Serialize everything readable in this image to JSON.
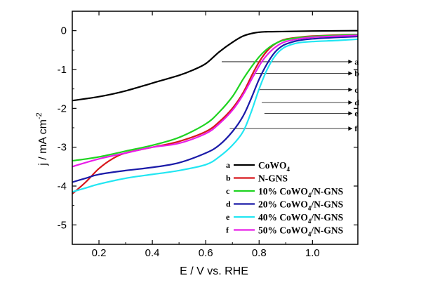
{
  "chart_data": {
    "type": "line",
    "title": "",
    "xlabel": "E / V vs. RHE",
    "ylabel": "j / mA cm",
    "ylabel_sup": "-2",
    "xlim": [
      0.1,
      1.17
    ],
    "ylim": [
      -5.5,
      0.5
    ],
    "xticks": [
      {
        "value": 0.2,
        "label": "0.2"
      },
      {
        "value": 0.4,
        "label": "0.4"
      },
      {
        "value": 0.6,
        "label": "0.6"
      },
      {
        "value": 0.8,
        "label": "0.8"
      },
      {
        "value": 1.0,
        "label": "1.0"
      }
    ],
    "yticks": [
      {
        "value": 0,
        "label": "0"
      },
      {
        "value": -1,
        "label": "-1"
      },
      {
        "value": -2,
        "label": "-2"
      },
      {
        "value": -3,
        "label": "-3"
      },
      {
        "value": -4,
        "label": "-4"
      },
      {
        "value": -5,
        "label": "-5"
      }
    ],
    "series": [
      {
        "id": "a",
        "name": "CoWO",
        "sub": "4",
        "suffix": "",
        "color": "#000000",
        "x": [
          0.1,
          0.2,
          0.3,
          0.4,
          0.5,
          0.55,
          0.6,
          0.65,
          0.7,
          0.74,
          0.78,
          0.82,
          0.9,
          1.0,
          1.17
        ],
        "y": [
          -1.8,
          -1.7,
          -1.55,
          -1.35,
          -1.15,
          -1.02,
          -0.85,
          -0.55,
          -0.3,
          -0.14,
          -0.06,
          -0.03,
          -0.02,
          -0.01,
          0.0
        ]
      },
      {
        "id": "b",
        "name": "N-GNS",
        "sub": "",
        "suffix": "",
        "color": "#d8161b",
        "x": [
          0.1,
          0.15,
          0.2,
          0.25,
          0.3,
          0.4,
          0.5,
          0.6,
          0.65,
          0.7,
          0.74,
          0.78,
          0.81,
          0.84,
          0.87,
          0.9,
          0.95,
          1.0,
          1.1,
          1.17
        ],
        "y": [
          -4.2,
          -3.9,
          -3.55,
          -3.3,
          -3.15,
          -3.0,
          -2.85,
          -2.6,
          -2.35,
          -2.0,
          -1.6,
          -1.05,
          -0.7,
          -0.45,
          -0.3,
          -0.22,
          -0.17,
          -0.14,
          -0.11,
          -0.1
        ]
      },
      {
        "id": "c",
        "name": "10% CoWO",
        "sub": "4",
        "suffix": "/N-GNS",
        "color": "#1fd321",
        "x": [
          0.1,
          0.2,
          0.3,
          0.4,
          0.5,
          0.6,
          0.65,
          0.7,
          0.74,
          0.78,
          0.81,
          0.84,
          0.87,
          0.9,
          0.95,
          1.0,
          1.1,
          1.17
        ],
        "y": [
          -3.35,
          -3.25,
          -3.1,
          -2.95,
          -2.75,
          -2.4,
          -2.1,
          -1.7,
          -1.25,
          -0.85,
          -0.6,
          -0.42,
          -0.3,
          -0.23,
          -0.18,
          -0.15,
          -0.12,
          -0.1
        ]
      },
      {
        "id": "d",
        "name": "20% CoWO",
        "sub": "4",
        "suffix": "/N-GNS",
        "color": "#1a1aa8",
        "x": [
          0.1,
          0.15,
          0.2,
          0.3,
          0.4,
          0.5,
          0.6,
          0.65,
          0.7,
          0.74,
          0.77,
          0.8,
          0.83,
          0.86,
          0.89,
          0.92,
          0.95,
          1.0,
          1.1,
          1.17
        ],
        "y": [
          -3.9,
          -3.8,
          -3.7,
          -3.6,
          -3.52,
          -3.4,
          -3.15,
          -2.95,
          -2.6,
          -2.2,
          -1.75,
          -1.25,
          -0.85,
          -0.55,
          -0.38,
          -0.3,
          -0.25,
          -0.21,
          -0.17,
          -0.15
        ]
      },
      {
        "id": "e",
        "name": "40% CoWO",
        "sub": "4",
        "suffix": "/N-GNS",
        "color": "#22e6f2",
        "x": [
          0.1,
          0.15,
          0.2,
          0.3,
          0.4,
          0.5,
          0.6,
          0.65,
          0.7,
          0.74,
          0.77,
          0.8,
          0.83,
          0.86,
          0.89,
          0.92,
          0.95,
          1.0,
          1.1,
          1.17
        ],
        "y": [
          -4.15,
          -4.05,
          -3.95,
          -3.8,
          -3.7,
          -3.6,
          -3.45,
          -3.25,
          -2.95,
          -2.6,
          -2.1,
          -1.5,
          -1.0,
          -0.65,
          -0.45,
          -0.36,
          -0.31,
          -0.28,
          -0.25,
          -0.22
        ]
      },
      {
        "id": "f",
        "name": "50% CoWO",
        "sub": "4",
        "suffix": "/N-GNS",
        "color": "#e81ee8",
        "x": [
          0.1,
          0.2,
          0.3,
          0.4,
          0.5,
          0.6,
          0.65,
          0.7,
          0.74,
          0.78,
          0.81,
          0.84,
          0.87,
          0.9,
          0.95,
          1.0,
          1.1,
          1.17
        ],
        "y": [
          -3.5,
          -3.3,
          -3.15,
          -3.0,
          -2.9,
          -2.65,
          -2.4,
          -2.05,
          -1.65,
          -1.15,
          -0.8,
          -0.55,
          -0.38,
          -0.28,
          -0.21,
          -0.17,
          -0.14,
          -0.12
        ]
      }
    ],
    "annotations": [
      {
        "letter": "a",
        "x_start": 0.66,
        "x_end": 1.15,
        "y": -0.8
      },
      {
        "letter": "b",
        "x_start": 0.78,
        "x_end": 1.15,
        "y": -1.1
      },
      {
        "letter": "c",
        "x_start": 0.8,
        "x_end": 1.15,
        "y": -1.52
      },
      {
        "letter": "d",
        "x_start": 0.81,
        "x_end": 1.15,
        "y": -1.85
      },
      {
        "letter": "e",
        "x_start": 0.82,
        "x_end": 1.15,
        "y": -2.13
      },
      {
        "letter": "f",
        "x_start": 0.69,
        "x_end": 1.15,
        "y": -2.52
      }
    ],
    "legend_position": "bottom-right",
    "grid": false
  }
}
